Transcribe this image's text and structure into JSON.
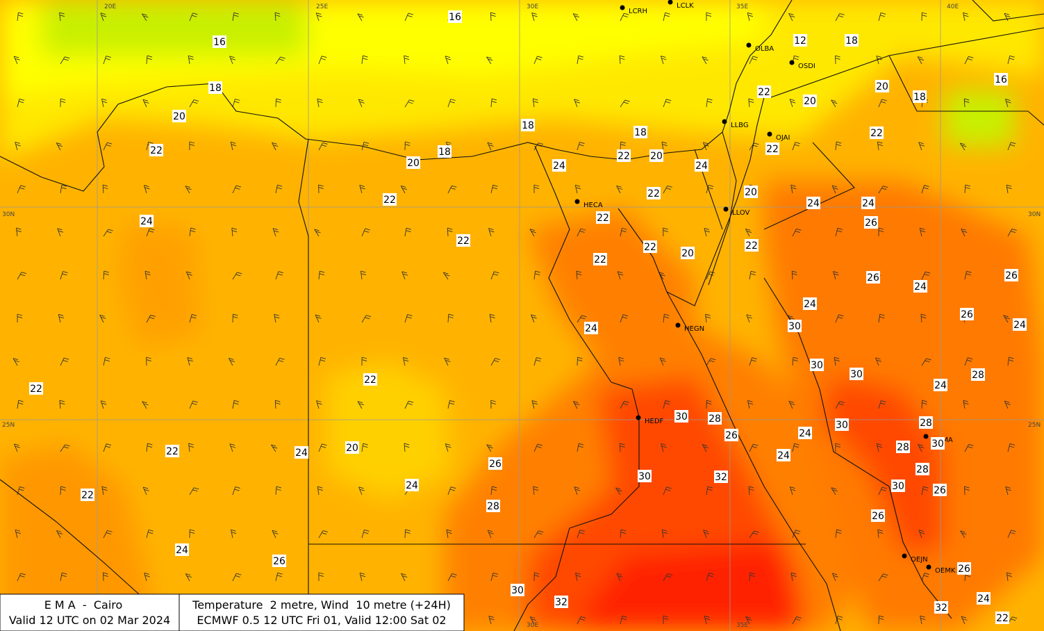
{
  "grid_labels": {
    "top": [
      "20E",
      "25E",
      "30E",
      "35E",
      "40E"
    ],
    "bottom": [
      "30E",
      "35E"
    ],
    "left": [
      "30N",
      "25N"
    ],
    "right": [
      "30N",
      "25N"
    ]
  },
  "stations": [
    "LCRH",
    "LCLK",
    "OLBA",
    "OSDI",
    "LLBG",
    "OJAI",
    "HECA",
    "LLOV",
    "HEGN",
    "HEDF",
    "OEMA",
    "OEJN",
    "OEMK"
  ],
  "contour_labels": [
    "16",
    "16",
    "12",
    "18",
    "18",
    "20",
    "16",
    "22",
    "20",
    "18",
    "20",
    "18",
    "18",
    "22",
    "22",
    "18",
    "22",
    "20",
    "22",
    "20",
    "24",
    "24",
    "20",
    "22",
    "22",
    "24",
    "24",
    "22",
    "26",
    "24",
    "22",
    "22",
    "22",
    "20",
    "22",
    "26",
    "24",
    "26",
    "24",
    "26",
    "24",
    "30",
    "24",
    "30",
    "30",
    "28",
    "22",
    "24",
    "22",
    "30",
    "28",
    "30",
    "28",
    "26",
    "24",
    "30",
    "28",
    "20",
    "22",
    "24",
    "24",
    "26",
    "28",
    "30",
    "32",
    "24",
    "30",
    "26",
    "22",
    "28",
    "26",
    "24",
    "26",
    "26",
    "30",
    "24",
    "32",
    "32",
    "22"
  ],
  "footer": {
    "left": [
      "E M A  -  Cairo",
      "Valid 12 UTC on 02 Mar 2024"
    ],
    "right": [
      "Temperature  2 metre, Wind  10 metre (+24H)",
      "ECMWF 0.5 12 UTC Fri 01, Valid 12:00 Sat 02"
    ]
  }
}
